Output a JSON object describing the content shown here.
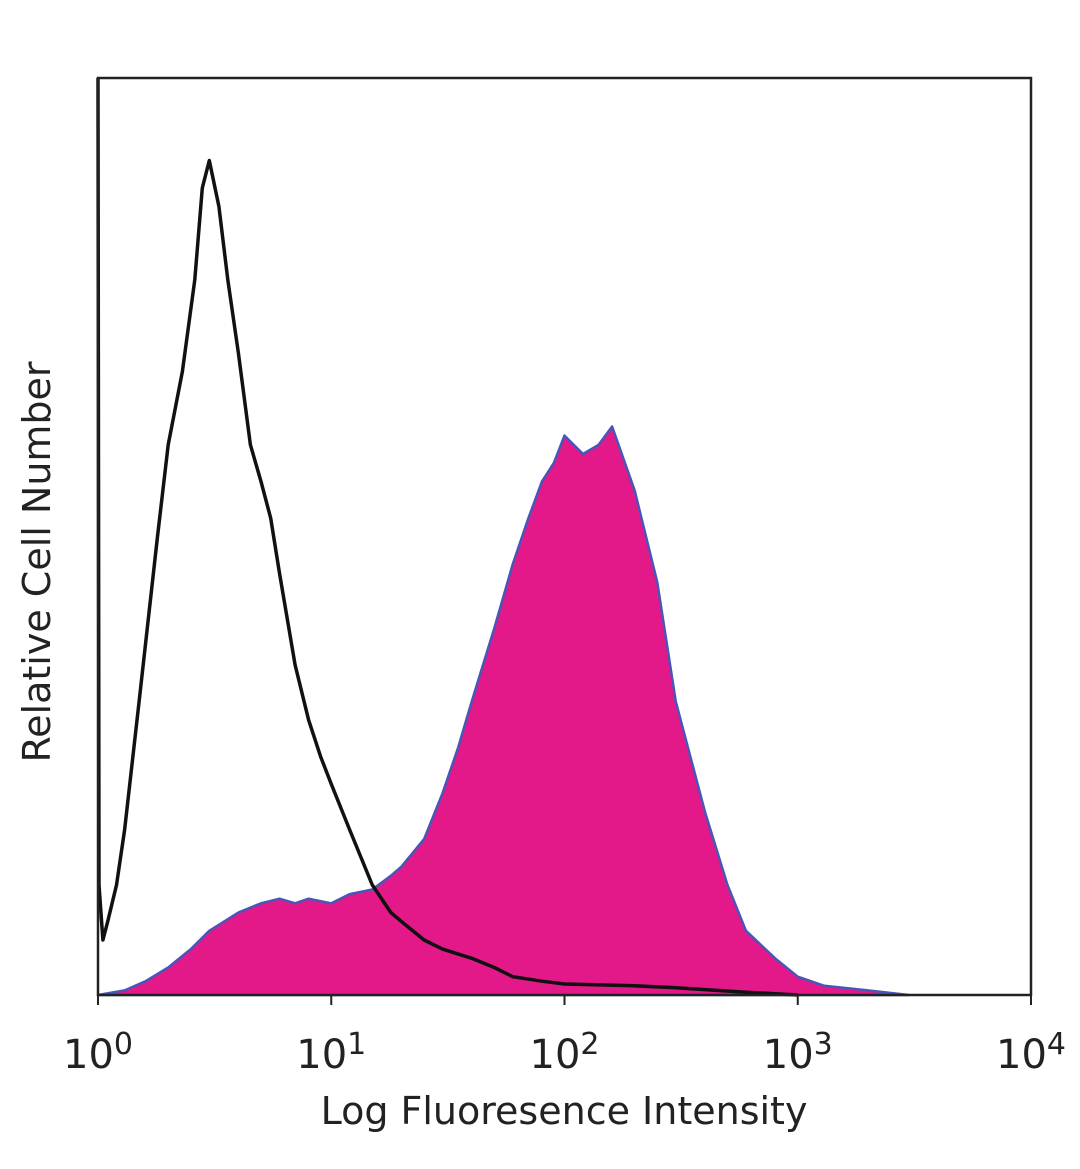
{
  "chart_data": {
    "type": "area",
    "title": "",
    "xlabel": "Log Fluoresence Intensity",
    "ylabel": "Relative Cell Number",
    "x_scale": "log",
    "xlim": [
      1,
      10000
    ],
    "ylim": [
      0,
      100
    ],
    "grid": false,
    "x_ticks": [
      {
        "base": "10",
        "exp": "0",
        "value": 1
      },
      {
        "base": "10",
        "exp": "1",
        "value": 10
      },
      {
        "base": "10",
        "exp": "2",
        "value": 100
      },
      {
        "base": "10",
        "exp": "3",
        "value": 1000
      },
      {
        "base": "10",
        "exp": "4",
        "value": 10000
      }
    ],
    "series": [
      {
        "style": "filled",
        "fill_color": "#e3198a",
        "line_color": "#4a55b8",
        "points": [
          [
            1.0,
            0
          ],
          [
            1.3,
            0.5
          ],
          [
            1.6,
            1.5
          ],
          [
            2.0,
            3
          ],
          [
            2.5,
            5
          ],
          [
            3.0,
            7
          ],
          [
            4.0,
            9
          ],
          [
            5.0,
            10
          ],
          [
            6.0,
            10.5
          ],
          [
            7.0,
            10
          ],
          [
            8.0,
            10.5
          ],
          [
            10.0,
            10
          ],
          [
            12.0,
            11
          ],
          [
            15.0,
            11.5
          ],
          [
            18.0,
            13
          ],
          [
            20.0,
            14
          ],
          [
            25.0,
            17
          ],
          [
            30.0,
            22
          ],
          [
            35.0,
            27
          ],
          [
            40.0,
            32
          ],
          [
            50.0,
            40
          ],
          [
            60.0,
            47
          ],
          [
            70.0,
            52
          ],
          [
            80.0,
            56
          ],
          [
            90.0,
            58
          ],
          [
            100.0,
            61
          ],
          [
            120.0,
            59
          ],
          [
            140.0,
            60
          ],
          [
            160.0,
            62
          ],
          [
            200.0,
            55
          ],
          [
            250.0,
            45
          ],
          [
            300.0,
            32
          ],
          [
            400.0,
            20
          ],
          [
            500.0,
            12
          ],
          [
            600.0,
            7
          ],
          [
            800.0,
            4
          ],
          [
            1000.0,
            2
          ],
          [
            1300.0,
            1
          ],
          [
            2000.0,
            0.5
          ],
          [
            3000.0,
            0
          ]
        ]
      },
      {
        "style": "outline",
        "line_color": "#111111",
        "points": [
          [
            1.0,
            100
          ],
          [
            1.01,
            12
          ],
          [
            1.05,
            6
          ],
          [
            1.1,
            8
          ],
          [
            1.2,
            12
          ],
          [
            1.3,
            18
          ],
          [
            1.5,
            32
          ],
          [
            1.8,
            50
          ],
          [
            2.0,
            60
          ],
          [
            2.3,
            68
          ],
          [
            2.6,
            78
          ],
          [
            2.8,
            88
          ],
          [
            3.0,
            91
          ],
          [
            3.3,
            86
          ],
          [
            3.6,
            78
          ],
          [
            4.0,
            70
          ],
          [
            4.5,
            60
          ],
          [
            5.0,
            56
          ],
          [
            5.5,
            52
          ],
          [
            6.0,
            46
          ],
          [
            7.0,
            36
          ],
          [
            8.0,
            30
          ],
          [
            9.0,
            26
          ],
          [
            10.0,
            23
          ],
          [
            12.0,
            18
          ],
          [
            15.0,
            12
          ],
          [
            18.0,
            9
          ],
          [
            20.0,
            8
          ],
          [
            25.0,
            6
          ],
          [
            30.0,
            5
          ],
          [
            40.0,
            4
          ],
          [
            50.0,
            3
          ],
          [
            60.0,
            2
          ],
          [
            80.0,
            1.5
          ],
          [
            100.0,
            1.2
          ],
          [
            200.0,
            1
          ],
          [
            300.0,
            0.8
          ],
          [
            600.0,
            0.3
          ],
          [
            1000.0,
            0
          ]
        ]
      }
    ]
  }
}
